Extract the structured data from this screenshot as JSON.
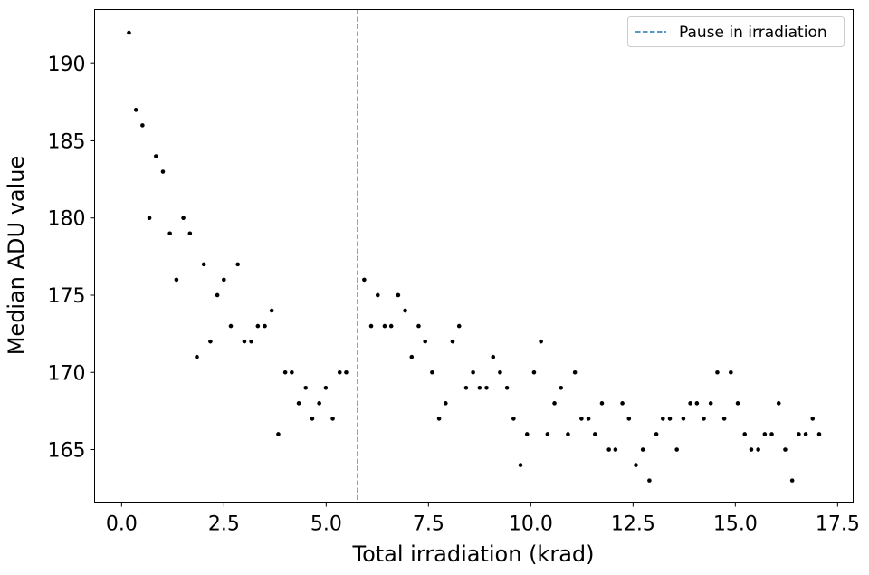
{
  "chart_data": {
    "type": "scatter",
    "title": "",
    "xlabel": "Total irradiation (krad)",
    "ylabel": "Median ADU value",
    "xlim": [
      -0.66,
      17.88
    ],
    "ylim": [
      161.6,
      193.5
    ],
    "xticks": [
      0.0,
      2.5,
      5.0,
      7.5,
      10.0,
      12.5,
      15.0,
      17.5
    ],
    "xtick_labels": [
      "0.0",
      "2.5",
      "5.0",
      "7.5",
      "10.0",
      "12.5",
      "15.0",
      "17.5"
    ],
    "yticks": [
      165,
      170,
      175,
      180,
      185,
      190
    ],
    "ytick_labels": [
      "165",
      "170",
      "175",
      "180",
      "185",
      "190"
    ],
    "grid": false,
    "legend": {
      "placement": "top-right",
      "entries": [
        "Pause in irradiation"
      ]
    },
    "pause_line": {
      "x": 5.77,
      "label": "Pause in irradiation",
      "color": "#1f77b4",
      "style": "dashed"
    },
    "series": [
      {
        "name": "Median ADU",
        "color": "#000000",
        "x": [
          0.18,
          0.35,
          0.51,
          0.68,
          0.84,
          1.01,
          1.18,
          1.34,
          1.51,
          1.67,
          1.84,
          2.01,
          2.17,
          2.34,
          2.5,
          2.67,
          2.84,
          3.0,
          3.17,
          3.33,
          3.5,
          3.67,
          3.83,
          4.0,
          4.16,
          4.33,
          4.5,
          4.66,
          4.83,
          4.99,
          5.16,
          5.33,
          5.49,
          5.93,
          6.1,
          6.26,
          6.43,
          6.59,
          6.76,
          6.93,
          7.09,
          7.26,
          7.42,
          7.59,
          7.76,
          7.92,
          8.09,
          8.25,
          8.42,
          8.59,
          8.75,
          8.92,
          9.08,
          9.25,
          9.42,
          9.58,
          9.75,
          9.91,
          10.08,
          10.25,
          10.41,
          10.58,
          10.74,
          10.91,
          11.08,
          11.24,
          11.41,
          11.57,
          11.74,
          11.91,
          12.07,
          12.24,
          12.4,
          12.57,
          12.74,
          12.9,
          13.07,
          13.23,
          13.4,
          13.57,
          13.73,
          13.9,
          14.06,
          14.23,
          14.4,
          14.56,
          14.73,
          14.89,
          15.06,
          15.23,
          15.39,
          15.56,
          15.72,
          15.89,
          16.06,
          16.22,
          16.39,
          16.55,
          16.72,
          16.89,
          17.05
        ],
        "y": [
          192,
          187,
          186,
          180,
          184,
          183,
          179,
          176,
          180,
          179,
          171,
          177,
          172,
          175,
          176,
          173,
          177,
          172,
          172,
          173,
          173,
          174,
          166,
          170,
          170,
          168,
          169,
          167,
          168,
          169,
          167,
          170,
          170,
          176,
          173,
          175,
          173,
          173,
          175,
          174,
          171,
          173,
          172,
          170,
          167,
          168,
          172,
          173,
          169,
          170,
          169,
          169,
          171,
          170,
          169,
          167,
          164,
          166,
          170,
          172,
          166,
          168,
          169,
          166,
          170,
          167,
          167,
          166,
          168,
          165,
          165,
          168,
          167,
          164,
          165,
          163,
          166,
          167,
          167,
          165,
          167,
          168,
          168,
          167,
          168,
          170,
          167,
          170,
          168,
          166,
          165,
          165,
          166,
          166,
          168,
          165,
          163,
          166,
          166,
          167,
          166
        ]
      }
    ]
  }
}
